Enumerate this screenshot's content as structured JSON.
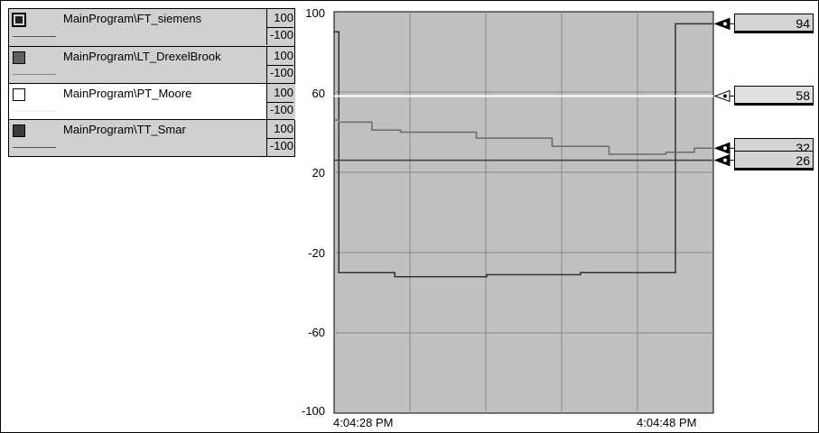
{
  "legend": {
    "items": [
      {
        "tag": "MainProgram\\FT_siemens",
        "max": "100",
        "min": "-100",
        "color": "#202020",
        "icon": "filled-square-icon"
      },
      {
        "tag": "MainProgram\\LT_DrexelBrook",
        "max": "100",
        "min": "-100",
        "color": "#606060",
        "icon": "filled-square-icon"
      },
      {
        "tag": "MainProgram\\PT_Moore",
        "max": "100",
        "min": "-100",
        "color": "#ffffff",
        "icon": "empty-square-icon"
      },
      {
        "tag": "MainProgram\\TT_Smar",
        "max": "100",
        "min": "-100",
        "color": "#3a3a3a",
        "icon": "filled-square-icon"
      }
    ]
  },
  "chart_data": {
    "type": "line",
    "ylim": [
      -100,
      100
    ],
    "y_ticks": [
      "100",
      "60",
      "20",
      "-20",
      "-60",
      "-100"
    ],
    "x_ticks": [
      "4:04:28 PM",
      "4:04:48 PM"
    ],
    "grid": true,
    "background": "#c0c0c0",
    "series": [
      {
        "name": "MainProgram\\FT_siemens",
        "color": "#303030",
        "x": [
          0,
          0.5,
          0.5,
          6.4,
          6.4,
          16.1,
          16.1,
          26,
          26,
          36,
          36,
          40
        ],
        "values": [
          90,
          90,
          -30,
          -30,
          -32,
          -32,
          -31,
          -31,
          -30,
          -30,
          94,
          94
        ]
      },
      {
        "name": "MainProgram\\LT_DrexelBrook",
        "color": "#6a6a6a",
        "x": [
          0,
          0.5,
          0.5,
          4,
          4,
          7,
          7,
          15,
          15,
          23,
          23,
          29,
          29,
          35,
          35,
          38,
          38,
          40
        ],
        "values": [
          46,
          46,
          45,
          45,
          41,
          41,
          40,
          40,
          37,
          37,
          33,
          33,
          29,
          29,
          30,
          30,
          32,
          32
        ]
      },
      {
        "name": "MainProgram\\PT_Moore",
        "color": "#ffffff",
        "x": [
          0,
          40
        ],
        "values": [
          58,
          58
        ]
      },
      {
        "name": "MainProgram\\TT_Smar",
        "color": "#404040",
        "x": [
          0,
          40
        ],
        "values": [
          26,
          26
        ]
      }
    ],
    "current_values": [
      "94",
      "58",
      "32",
      "26"
    ]
  }
}
